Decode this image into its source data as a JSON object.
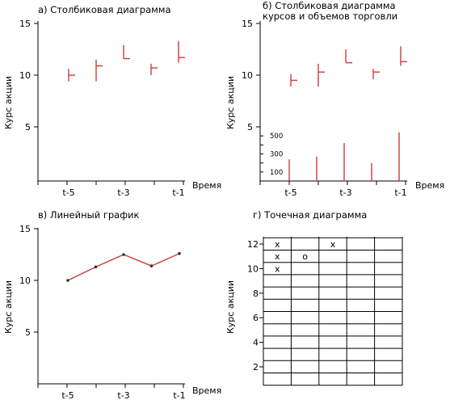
{
  "chart_data": [
    {
      "type": "ohlc",
      "title": "а) Столбиковая диаграмма",
      "xlabel": "Время",
      "ylabel": "Курс акции",
      "ylim": [
        0,
        15
      ],
      "yticks": [
        "15",
        "10",
        "5"
      ],
      "xticks": [
        "t-5",
        "t-3",
        "t-1"
      ],
      "x": [
        1,
        2,
        3,
        4,
        5
      ],
      "high": [
        10.6,
        11.5,
        12.9,
        11.1,
        13.3
      ],
      "low": [
        9.4,
        9.4,
        11.6,
        10.0,
        11.2
      ],
      "close": [
        10.0,
        10.9,
        11.6,
        10.7,
        11.7
      ],
      "color": "#cc3b3b"
    },
    {
      "type": "ohlc-volume",
      "title": [
        "б) Столбиковая диаграмма",
        "курсов и объемов торговли"
      ],
      "xlabel": "Время",
      "ylabel": "Курс акции",
      "ylim": [
        0,
        15
      ],
      "yticks": [
        "15",
        "10",
        "5"
      ],
      "volume_ticks": [
        "500",
        "300",
        "100"
      ],
      "xticks": [
        "t-5",
        "t-3",
        "t-1"
      ],
      "x": [
        1,
        2,
        3,
        4,
        5
      ],
      "high": [
        10.1,
        11.1,
        12.5,
        10.6,
        12.8
      ],
      "low": [
        8.9,
        8.9,
        11.2,
        9.6,
        10.9
      ],
      "close": [
        9.5,
        10.3,
        11.2,
        10.3,
        11.3
      ],
      "volume": [
        240,
        270,
        420,
        200,
        540
      ],
      "color": "#cc3b3b"
    },
    {
      "type": "line",
      "title": "в) Линейный график",
      "xlabel": "Время",
      "ylabel": "Курс акции",
      "ylim": [
        0,
        15
      ],
      "yticks": [
        "15",
        "10",
        "5"
      ],
      "xticks": [
        "t-5",
        "t-3",
        "t-1"
      ],
      "x": [
        1,
        2,
        3,
        4,
        5
      ],
      "values": [
        10.0,
        11.3,
        12.5,
        11.4,
        12.6
      ],
      "color": "#cc3b3b"
    },
    {
      "type": "point-figure",
      "title": "г) Точечная диаграмма",
      "ylabel": "Курс акции",
      "yticks": [
        "12",
        "10",
        "8",
        "6",
        "4",
        "2"
      ],
      "columns": 5,
      "rows": 12,
      "marks": [
        {
          "col": 1,
          "row": 12,
          "symbol": "x"
        },
        {
          "col": 1,
          "row": 11,
          "symbol": "x"
        },
        {
          "col": 1,
          "row": 10,
          "symbol": "x"
        },
        {
          "col": 2,
          "row": 11,
          "symbol": "o"
        },
        {
          "col": 3,
          "row": 12,
          "symbol": "x"
        }
      ]
    }
  ]
}
